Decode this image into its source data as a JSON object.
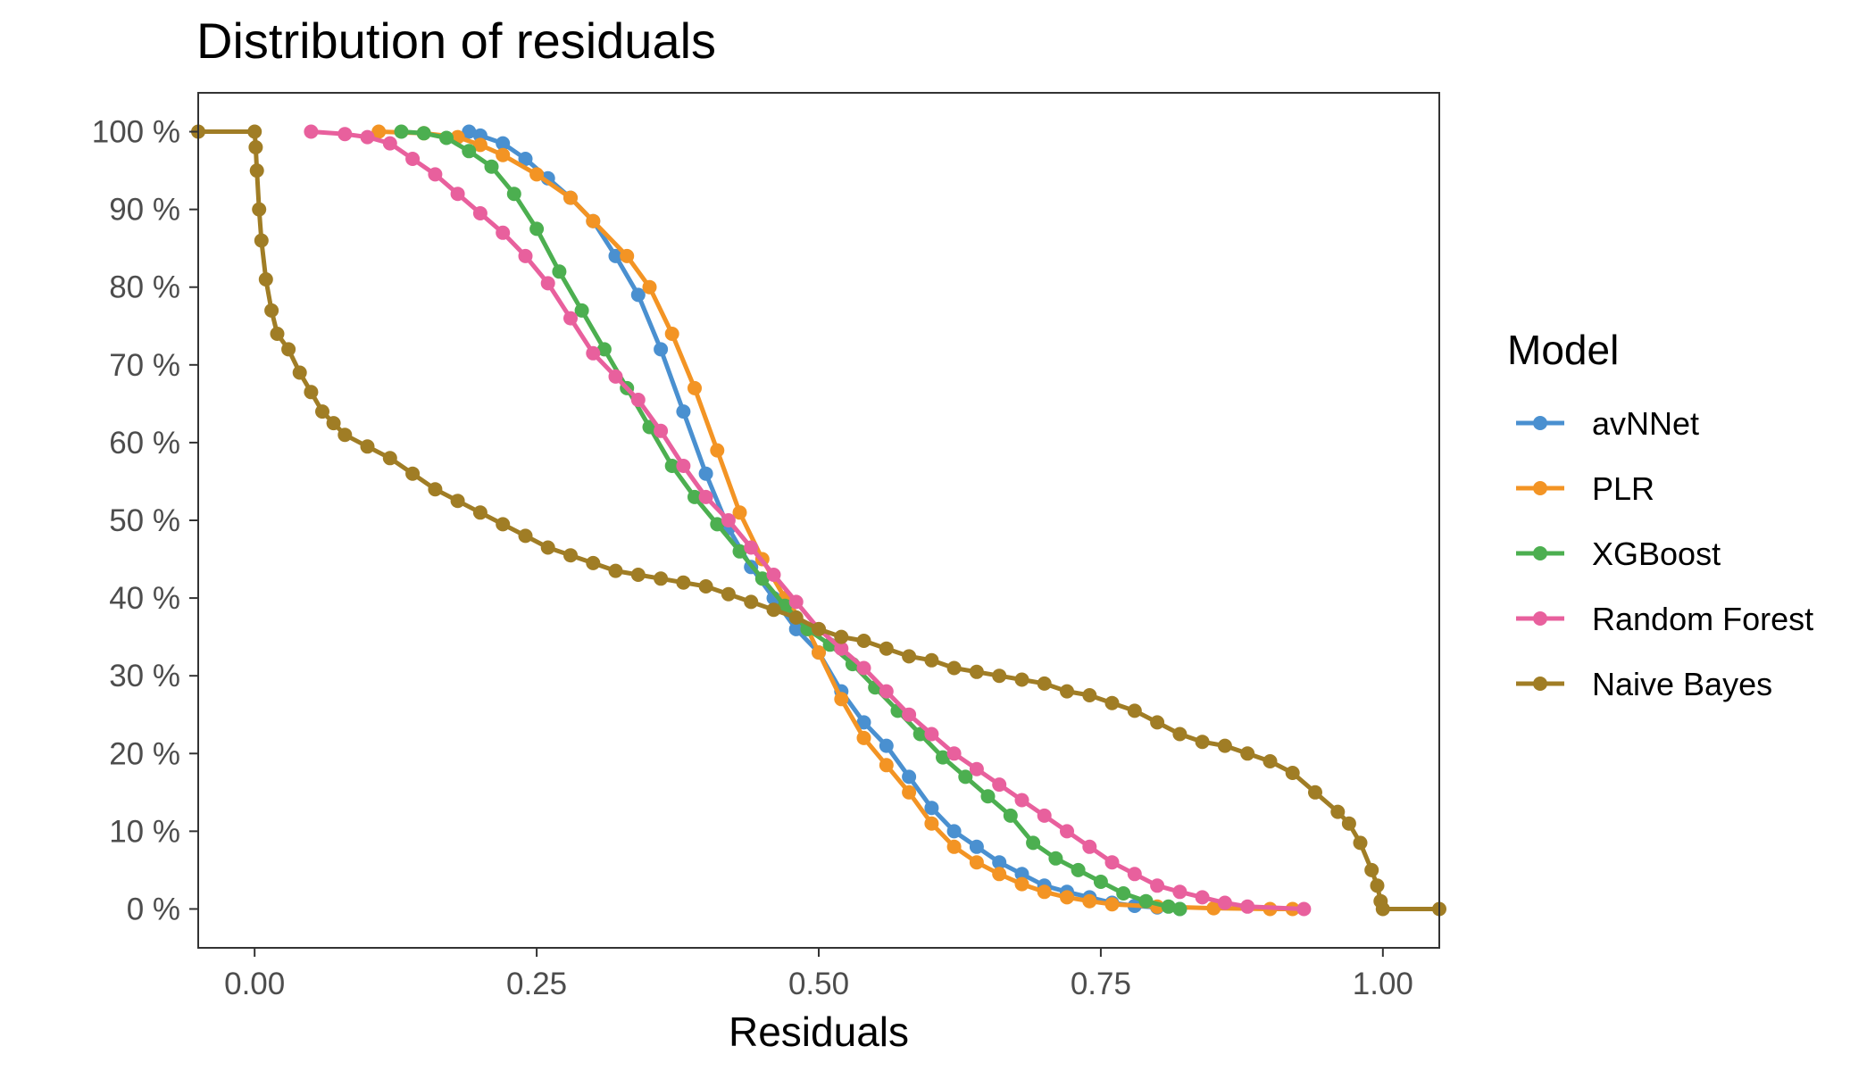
{
  "chart_data": {
    "type": "line",
    "title": "Distribution of residuals",
    "xlabel": "Residuals",
    "ylabel": "",
    "xlim": [
      -0.05,
      1.05
    ],
    "ylim": [
      -5,
      105
    ],
    "x_ticks": [
      0,
      0.25,
      0.5,
      0.75,
      1.0
    ],
    "x_tick_labels": [
      "0.00",
      "0.25",
      "0.50",
      "0.75",
      "1.00"
    ],
    "y_ticks": [
      0,
      10,
      20,
      30,
      40,
      50,
      60,
      70,
      80,
      90,
      100
    ],
    "y_tick_labels": [
      "0 %",
      "10 %",
      "20 %",
      "30 %",
      "40 %",
      "50 %",
      "60 %",
      "70 %",
      "80 %",
      "90 %",
      "100 %"
    ],
    "grid": false,
    "legend_title": "Model",
    "legend_position": "right",
    "series": [
      {
        "name": "avNNet",
        "color": "#4A90D0",
        "x": [
          0.19,
          0.2,
          0.22,
          0.24,
          0.26,
          0.28,
          0.3,
          0.32,
          0.34,
          0.36,
          0.38,
          0.4,
          0.42,
          0.44,
          0.46,
          0.48,
          0.5,
          0.52,
          0.54,
          0.56,
          0.58,
          0.6,
          0.62,
          0.64,
          0.66,
          0.68,
          0.7,
          0.72,
          0.74,
          0.76,
          0.78,
          0.8,
          0.82
        ],
        "y": [
          100,
          99.5,
          98.5,
          96.5,
          94,
          91.5,
          88.5,
          84,
          79,
          72,
          64,
          56,
          49,
          44,
          40,
          36,
          33,
          28,
          24,
          21,
          17,
          13,
          10,
          8,
          6,
          4.5,
          3,
          2.2,
          1.5,
          0.8,
          0.4,
          0.2,
          0
        ]
      },
      {
        "name": "PLR",
        "color": "#F39424",
        "x": [
          0.11,
          0.15,
          0.18,
          0.2,
          0.22,
          0.25,
          0.28,
          0.3,
          0.33,
          0.35,
          0.37,
          0.39,
          0.41,
          0.43,
          0.45,
          0.47,
          0.49,
          0.5,
          0.52,
          0.54,
          0.56,
          0.58,
          0.6,
          0.62,
          0.64,
          0.66,
          0.68,
          0.7,
          0.72,
          0.74,
          0.76,
          0.8,
          0.85,
          0.9,
          0.92
        ],
        "y": [
          100,
          99.8,
          99.3,
          98.3,
          97,
          94.5,
          91.5,
          88.5,
          84,
          80,
          74,
          67,
          59,
          51,
          45,
          40,
          36,
          33,
          27,
          22,
          18.5,
          15,
          11,
          8,
          6,
          4.5,
          3.2,
          2.2,
          1.5,
          1,
          0.6,
          0.3,
          0.1,
          0,
          0
        ]
      },
      {
        "name": "XGBoost",
        "color": "#4CAF50",
        "x": [
          0.13,
          0.15,
          0.17,
          0.19,
          0.21,
          0.23,
          0.25,
          0.27,
          0.29,
          0.31,
          0.33,
          0.35,
          0.37,
          0.39,
          0.41,
          0.43,
          0.45,
          0.47,
          0.49,
          0.51,
          0.53,
          0.55,
          0.57,
          0.59,
          0.61,
          0.63,
          0.65,
          0.67,
          0.69,
          0.71,
          0.73,
          0.75,
          0.77,
          0.79,
          0.81,
          0.82
        ],
        "y": [
          100,
          99.8,
          99.2,
          97.5,
          95.5,
          92,
          87.5,
          82,
          77,
          72,
          67,
          62,
          57,
          53,
          49.5,
          46,
          42.5,
          39,
          36,
          34,
          31.5,
          28.5,
          25.5,
          22.5,
          19.5,
          17,
          14.5,
          12,
          8.5,
          6.5,
          5,
          3.5,
          2,
          1,
          0.3,
          0
        ]
      },
      {
        "name": "Random Forest",
        "color": "#E8609D",
        "x": [
          0.05,
          0.08,
          0.1,
          0.12,
          0.14,
          0.16,
          0.18,
          0.2,
          0.22,
          0.24,
          0.26,
          0.28,
          0.3,
          0.32,
          0.34,
          0.36,
          0.38,
          0.4,
          0.42,
          0.44,
          0.46,
          0.48,
          0.5,
          0.52,
          0.54,
          0.56,
          0.58,
          0.6,
          0.62,
          0.64,
          0.66,
          0.68,
          0.7,
          0.72,
          0.74,
          0.76,
          0.78,
          0.8,
          0.82,
          0.84,
          0.86,
          0.88,
          0.93
        ],
        "y": [
          100,
          99.7,
          99.3,
          98.5,
          96.5,
          94.5,
          92,
          89.5,
          87,
          84,
          80.5,
          76,
          71.5,
          68.5,
          65.5,
          61.5,
          57,
          53,
          50,
          46.5,
          43,
          39.5,
          36,
          33.5,
          31,
          28,
          25,
          22.5,
          20,
          18,
          16,
          14,
          12,
          10,
          8,
          6,
          4.5,
          3,
          2.2,
          1.5,
          0.8,
          0.3,
          0
        ]
      },
      {
        "name": "Naive Bayes",
        "color": "#A07D25",
        "x": [
          -0.05,
          0,
          0.001,
          0.002,
          0.004,
          0.006,
          0.01,
          0.015,
          0.02,
          0.03,
          0.04,
          0.05,
          0.06,
          0.07,
          0.08,
          0.1,
          0.12,
          0.14,
          0.16,
          0.18,
          0.2,
          0.22,
          0.24,
          0.26,
          0.28,
          0.3,
          0.32,
          0.34,
          0.36,
          0.38,
          0.4,
          0.42,
          0.44,
          0.46,
          0.48,
          0.5,
          0.52,
          0.54,
          0.56,
          0.58,
          0.6,
          0.62,
          0.64,
          0.66,
          0.68,
          0.7,
          0.72,
          0.74,
          0.76,
          0.78,
          0.8,
          0.82,
          0.84,
          0.86,
          0.88,
          0.9,
          0.92,
          0.94,
          0.96,
          0.97,
          0.98,
          0.99,
          0.995,
          0.998,
          1.0,
          1.05
        ],
        "y": [
          100,
          100,
          98,
          95,
          90,
          86,
          81,
          77,
          74,
          72,
          69,
          66.5,
          64,
          62.5,
          61,
          59.5,
          58,
          56,
          54,
          52.5,
          51,
          49.5,
          48,
          46.5,
          45.5,
          44.5,
          43.5,
          43,
          42.5,
          42,
          41.5,
          40.5,
          39.5,
          38.5,
          37.5,
          36,
          35,
          34.5,
          33.5,
          32.5,
          32,
          31,
          30.5,
          30,
          29.5,
          29,
          28,
          27.5,
          26.5,
          25.5,
          24,
          22.5,
          21.5,
          21,
          20,
          19,
          17.5,
          15,
          12.5,
          11,
          8.5,
          5,
          3,
          1,
          0,
          0
        ]
      }
    ]
  }
}
